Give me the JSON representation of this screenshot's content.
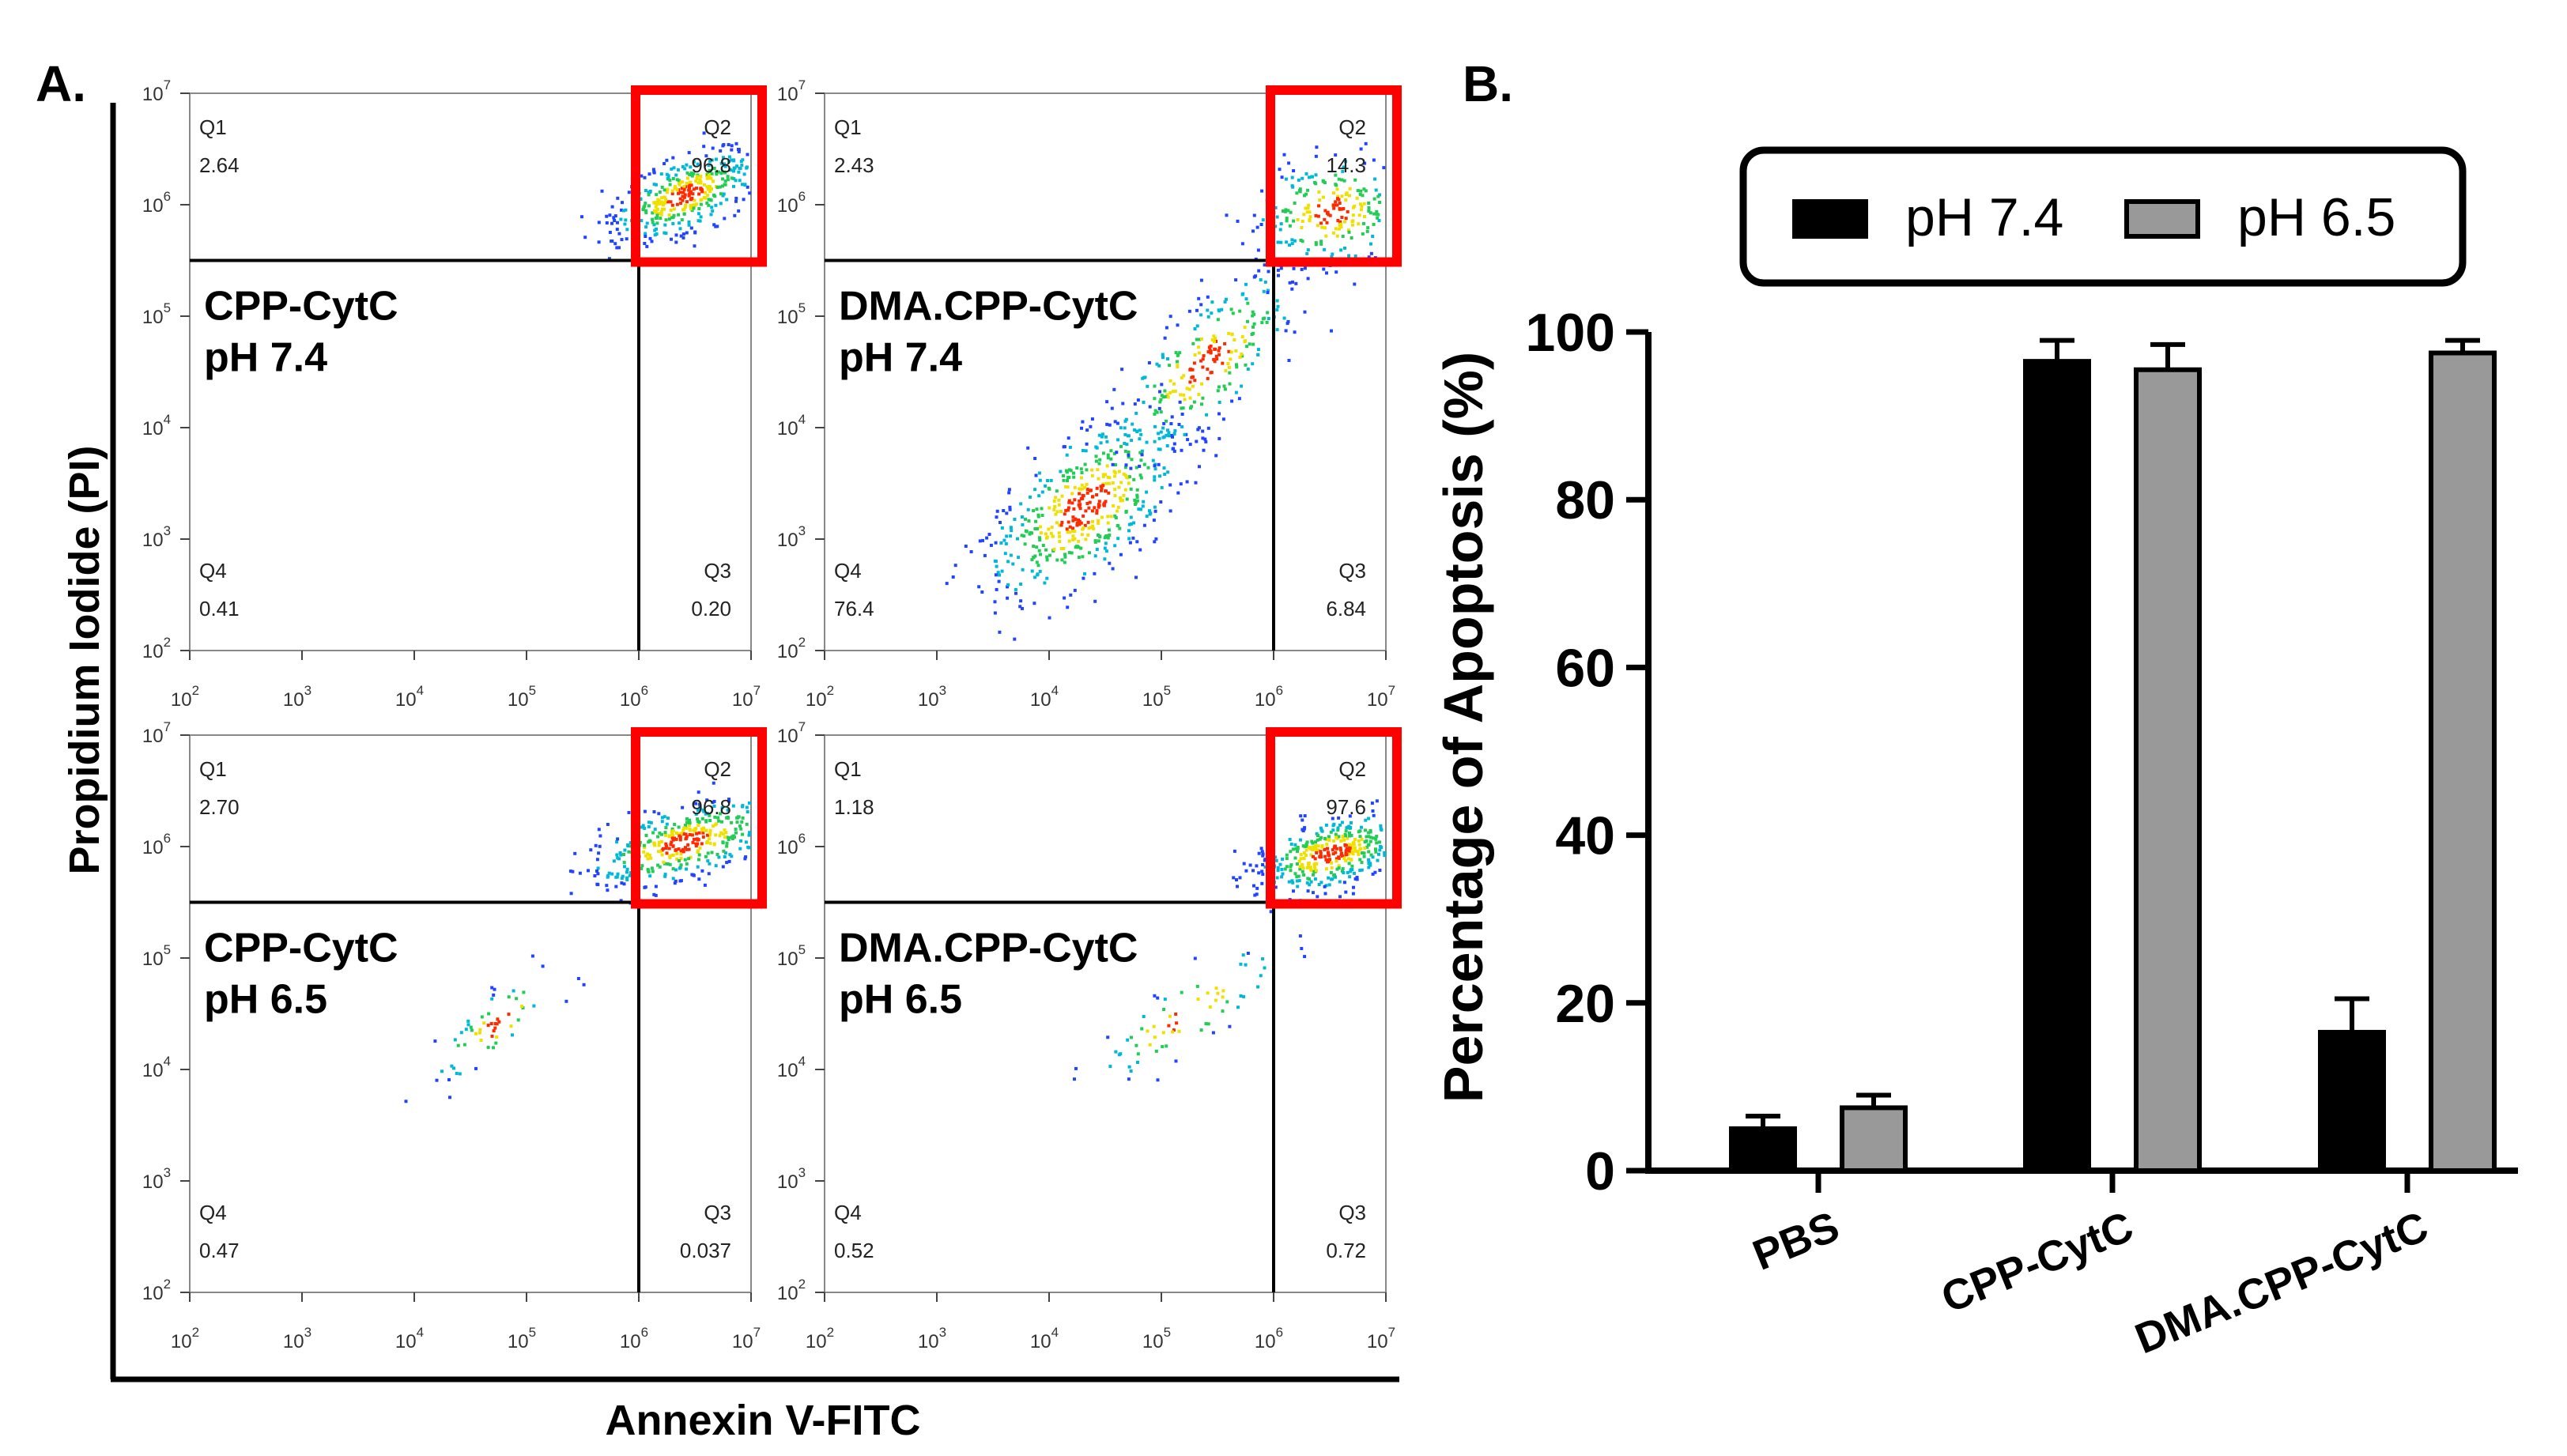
{
  "panel_a": {
    "label": "A.",
    "ylabel": "Propidium Iodide (PI)",
    "xlabel": "Annexin V-FITC",
    "axis_tick_exponents": [
      2,
      3,
      4,
      5,
      6,
      7
    ],
    "tick_base": "10",
    "highlight_color": "#ff0000",
    "plots": [
      {
        "name": "CPP-CytC pH 7.4",
        "line1": "CPP-CytC",
        "line2": "pH 7.4",
        "gate_x": 6.0,
        "gate_y": 5.5,
        "quadrants": {
          "Q1": "2.64",
          "Q2": "96.8",
          "Q3": "0.20",
          "Q4": "0.41"
        }
      },
      {
        "name": "DMA.CPP-CytC pH 7.4",
        "line1": "DMA.CPP-CytC",
        "line2": "pH 7.4",
        "gate_x": 6.0,
        "gate_y": 5.5,
        "quadrants": {
          "Q1": "2.43",
          "Q2": "14.3",
          "Q3": "6.84",
          "Q4": "76.4"
        }
      },
      {
        "name": "CPP-CytC pH 6.5",
        "line1": "CPP-CytC",
        "line2": "pH 6.5",
        "gate_x": 6.0,
        "gate_y": 5.5,
        "quadrants": {
          "Q1": "2.70",
          "Q2": "96.8",
          "Q3": "0.037",
          "Q4": "0.47"
        }
      },
      {
        "name": "DMA.CPP-CytC pH 6.5",
        "line1": "DMA.CPP-CytC",
        "line2": "pH 6.5",
        "gate_x": 6.0,
        "gate_y": 5.5,
        "quadrants": {
          "Q1": "1.18",
          "Q2": "97.6",
          "Q3": "0.72",
          "Q4": "0.52"
        }
      }
    ]
  },
  "chart_data": {
    "type": "bar",
    "panel_label": "B.",
    "categories": [
      "PBS",
      "CPP-CytC",
      "DMA.CPP-CytC"
    ],
    "series": [
      {
        "name": "pH 7.4",
        "values": [
          5,
          96.5,
          16.5
        ],
        "errors": [
          1.5,
          2.5,
          4
        ],
        "color": "#000000"
      },
      {
        "name": "pH 6.5",
        "values": [
          7.5,
          95.5,
          97.5
        ],
        "errors": [
          1.5,
          3,
          1.5
        ],
        "color": "#999999"
      }
    ],
    "ylabel": "Percentage of Apoptosis (%)",
    "xlabel": "",
    "ylim": [
      0,
      100
    ],
    "yticks": [
      "0",
      "20",
      "40",
      "60",
      "80",
      "100"
    ],
    "legend_position": "top",
    "grid": false
  }
}
